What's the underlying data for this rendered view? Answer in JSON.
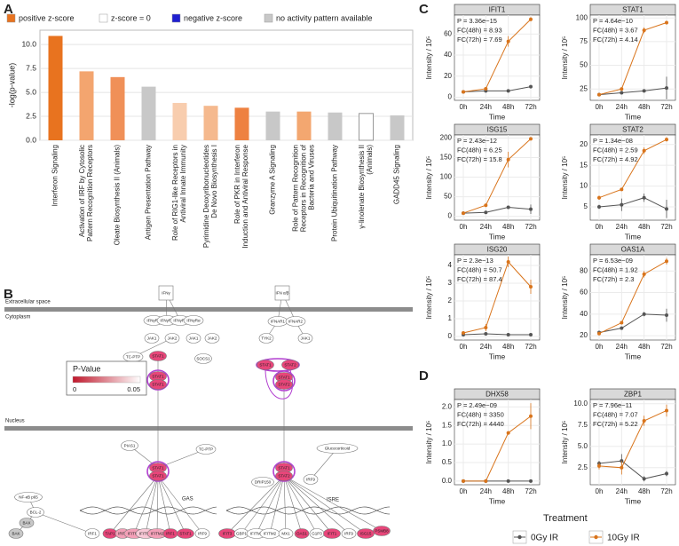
{
  "panels": [
    "A",
    "B",
    "C",
    "D"
  ],
  "chart_data": [
    {
      "type": "bar",
      "y_label": "-log(p-value)",
      "legend": [
        {
          "label": "positive z-score",
          "color": "#e8731f"
        },
        {
          "label": "z-score = 0",
          "color": "#ffffff"
        },
        {
          "label": "negative z-score",
          "color": "#1f1fd0"
        },
        {
          "label": "no activity pattern available",
          "color": "#c8c8c8"
        }
      ],
      "categories": [
        "Interferon Signaling",
        "Activation of IRF by Cytosolic\nPattern Recognition Receptors",
        "Oleate Biosynthesis II (Animals)",
        "Antigen Presentation Pathway",
        "Role of RIG1-like Receptors in\nAntiviral Innate Immunity",
        "Pyrimidine Deoxyribonucleotides\nDe Novo Biosynthesis I",
        "Role of PKR in Interferon\nInduction and Antiviral Response",
        "Granzyme A Signaling",
        "Role of Pattern Recognition\nReceptors in Recognition of\nBacteria and Viruses",
        "Protein Ubiquitination Pathway",
        "γ-linolenate Biosynthesis II\n(Animals)",
        "GADD45 Signaling"
      ],
      "values": [
        10.9,
        7.2,
        6.6,
        5.6,
        3.9,
        3.6,
        3.4,
        3.0,
        3.0,
        2.9,
        2.8,
        2.6
      ],
      "colors": [
        "#e8731f",
        "#f3a56f",
        "#f09058",
        "#c8c8c8",
        "#f8cdae",
        "#f5b98e",
        "#ee8141",
        "#c8c8c8",
        "#f3a770",
        "#c8c8c8",
        "#ffffff",
        "#c8c8c8"
      ],
      "ylim": [
        0,
        11.5
      ],
      "yticks": [
        {
          "value": 0,
          "label": "0.0"
        },
        2.5,
        {
          "value": 5,
          "label": "5.0"
        },
        7.5,
        {
          "value": 10,
          "label": "10.0"
        }
      ],
      "grid": true
    },
    {
      "type": "line",
      "title": "IFIT1",
      "annotations": [
        "P = 3.36e−15",
        "FC(48h) = 8.93",
        "FC(72h) = 7.69"
      ],
      "x_label": "Time",
      "y_label": "Intensity / 10⁵",
      "legend_title": "Treatment",
      "categories": [
        "0h",
        "24h",
        "48h",
        "72h"
      ],
      "ylim": [
        -3,
        78
      ],
      "yticks": [
        0,
        20,
        40,
        60
      ],
      "grid": true,
      "series": [
        {
          "name": "0Gy IR",
          "color": "#555555",
          "values": [
            5,
            6,
            6,
            10
          ],
          "errors": [
            0.5,
            0.5,
            0.5,
            1
          ]
        },
        {
          "name": "10Gy IR",
          "color": "#d9741b",
          "values": [
            5,
            8,
            53,
            74
          ],
          "errors": [
            0.5,
            1,
            5,
            2
          ]
        }
      ]
    },
    {
      "type": "line",
      "title": "STAT1",
      "annotations": [
        "P = 4.64e−10",
        "FC(48h) = 3.67",
        "FC(72h) = 4.14"
      ],
      "x_label": "Time",
      "y_label": "Intensity / 10⁵",
      "categories": [
        "0h",
        "24h",
        "48h",
        "72h"
      ],
      "ylim": [
        13,
        103
      ],
      "yticks": [
        25,
        50,
        75,
        100
      ],
      "grid": true,
      "series": [
        {
          "name": "0Gy IR",
          "color": "#555555",
          "values": [
            19,
            21,
            23,
            26
          ],
          "errors": [
            1,
            1,
            1,
            12
          ]
        },
        {
          "name": "10Gy IR",
          "color": "#d9741b",
          "values": [
            19,
            25,
            87,
            95
          ],
          "errors": [
            1,
            1,
            3,
            2
          ]
        }
      ]
    },
    {
      "type": "line",
      "title": "ISG15",
      "annotations": [
        "P = 2.43e−12",
        "FC(48h) = 6.25",
        "FC(72h) = 15.8"
      ],
      "x_label": "Time",
      "y_label": "Intensity / 10⁵",
      "categories": [
        "0h",
        "24h",
        "48h",
        "72h"
      ],
      "ylim": [
        -10,
        208
      ],
      "yticks": [
        0,
        50,
        100,
        150,
        200
      ],
      "grid": true,
      "series": [
        {
          "name": "0Gy IR",
          "color": "#555555",
          "values": [
            8,
            10,
            23,
            18
          ],
          "errors": [
            1,
            2,
            3,
            12
          ]
        },
        {
          "name": "10Gy IR",
          "color": "#d9741b",
          "values": [
            8,
            28,
            145,
            198
          ],
          "errors": [
            2,
            3,
            20,
            3
          ]
        }
      ]
    },
    {
      "type": "line",
      "title": "STAT2",
      "annotations": [
        "P = 1.34e−08",
        "FC(48h) = 2.59",
        "FC(72h) = 4.92"
      ],
      "x_label": "Time",
      "y_label": "Intensity / 10⁵",
      "categories": [
        "0h",
        "24h",
        "48h",
        "72h"
      ],
      "ylim": [
        1.8,
        22.3
      ],
      "yticks": [
        5,
        10,
        15,
        20
      ],
      "grid": true,
      "series": [
        {
          "name": "0Gy IR",
          "color": "#555555",
          "values": [
            5,
            5.5,
            7.2,
            4.5
          ],
          "errors": [
            0.5,
            1.5,
            1,
            2.2
          ]
        },
        {
          "name": "10Gy IR",
          "color": "#d9741b",
          "values": [
            7.2,
            9.2,
            18.5,
            21.2
          ],
          "errors": [
            0.5,
            0.3,
            0.8,
            0.5
          ]
        }
      ]
    },
    {
      "type": "line",
      "title": "ISG20",
      "annotations": [
        "P = 2.3e−13",
        "FC(48h) = 50.7",
        "FC(72h) = 87.4"
      ],
      "x_label": "Time",
      "y_label": "Intensity / 10⁵",
      "categories": [
        "0h",
        "24h",
        "48h",
        "72h"
      ],
      "ylim": [
        -0.2,
        4.6
      ],
      "yticks": [
        0,
        1,
        2,
        3,
        4
      ],
      "grid": true,
      "series": [
        {
          "name": "0Gy IR",
          "color": "#555555",
          "values": [
            0.1,
            0.15,
            0.1,
            0.1
          ],
          "errors": [
            0.03,
            0.03,
            0.03,
            0.03
          ]
        },
        {
          "name": "10Gy IR",
          "color": "#d9741b",
          "values": [
            0.2,
            0.5,
            4.2,
            2.8
          ],
          "errors": [
            0.05,
            0.2,
            0.3,
            0.4
          ]
        }
      ]
    },
    {
      "type": "line",
      "title": "OAS1A",
      "annotations": [
        "P = 6.53e−09",
        "FC(48h) = 1.92",
        "FC(72h) = 2.3"
      ],
      "x_label": "Time",
      "y_label": "Intensity / 10⁵",
      "categories": [
        "0h",
        "24h",
        "48h",
        "72h"
      ],
      "ylim": [
        16,
        95
      ],
      "yticks": [
        20,
        40,
        60,
        80
      ],
      "grid": true,
      "series": [
        {
          "name": "0Gy IR",
          "color": "#555555",
          "values": [
            23,
            27,
            40,
            39
          ],
          "errors": [
            1,
            1,
            2,
            6
          ]
        },
        {
          "name": "10Gy IR",
          "color": "#d9741b",
          "values": [
            22,
            32,
            77,
            89
          ],
          "errors": [
            1,
            1,
            3,
            3
          ]
        }
      ]
    },
    {
      "type": "line",
      "title": "DHX58",
      "annotations": [
        "P = 2.49e−09",
        "FC(48h) = 3350",
        "FC(72h) = 4440"
      ],
      "x_label": "Time",
      "y_label": "Intensity / 10⁵",
      "categories": [
        "0h",
        "24h",
        "48h",
        "72h"
      ],
      "ylim": [
        -0.1,
        2.2
      ],
      "yticks": [
        {
          "value": 0,
          "label": "0.0"
        },
        0.5,
        {
          "value": 1,
          "label": "1.0"
        },
        1.5,
        {
          "value": 2,
          "label": "2.0"
        }
      ],
      "grid": true,
      "series": [
        {
          "name": "0Gy IR",
          "color": "#555555",
          "values": [
            0,
            0,
            0,
            0
          ],
          "errors": [
            0,
            0,
            0,
            0
          ]
        },
        {
          "name": "10Gy IR",
          "color": "#d9741b",
          "values": [
            0,
            0,
            1.3,
            1.75
          ],
          "errors": [
            0.02,
            0.02,
            0.05,
            0.35
          ]
        }
      ]
    },
    {
      "type": "line",
      "title": "ZBP1",
      "annotations": [
        "P = 7.96e−11",
        "FC(48h) = 7.07",
        "FC(72h) = 5.22"
      ],
      "x_label": "Time",
      "y_label": "Intensity / 10⁵",
      "categories": [
        "0h",
        "24h",
        "48h",
        "72h"
      ],
      "ylim": [
        0.5,
        10.5
      ],
      "yticks": [
        2.5,
        {
          "value": 5,
          "label": "5.0"
        },
        7.5,
        {
          "value": 10,
          "label": "10.0"
        }
      ],
      "grid": true,
      "series": [
        {
          "name": "0Gy IR",
          "color": "#555555",
          "values": [
            3,
            3.3,
            1.2,
            1.8
          ],
          "errors": [
            0.3,
            0.8,
            0.3,
            0.3
          ]
        },
        {
          "name": "10Gy IR",
          "color": "#d9741b",
          "values": [
            2.7,
            2.5,
            8,
            9.2
          ],
          "errors": [
            0.4,
            0.8,
            0.6,
            0.7
          ]
        }
      ]
    }
  ],
  "diagram": {
    "compartments": [
      "Extracellular space",
      "Cytoplasm",
      "Nucleus"
    ],
    "sites": [
      "GAS",
      "ISRE"
    ],
    "pvalue_legend": {
      "title": "P-Value",
      "ticks": [
        0,
        0.05
      ],
      "colors": [
        "#c0172b",
        "#ffffff"
      ]
    },
    "nodes": [
      {
        "label": "IFNγ",
        "color": "#ffffff"
      },
      {
        "label": "IFNγRα",
        "color": "#ffffff"
      },
      {
        "label": "IFNγRβ",
        "color": "#ffffff"
      },
      {
        "label": "IFNγRβ",
        "color": "#ffffff"
      },
      {
        "label": "IFNγRα",
        "color": "#ffffff"
      },
      {
        "label": "JAK1",
        "color": "#ffffff"
      },
      {
        "label": "JAK2",
        "color": "#ffffff"
      },
      {
        "label": "JAK1",
        "color": "#ffffff"
      },
      {
        "label": "JAK2",
        "color": "#ffffff"
      },
      {
        "label": "TC-PTP",
        "color": "#ffffff"
      },
      {
        "label": "STAT1",
        "color": "#e8467a"
      },
      {
        "label": "SOCS1",
        "color": "#ffffff"
      },
      {
        "label": "STAT1",
        "color": "#e8467a"
      },
      {
        "label": "STAT1",
        "color": "#e8467a"
      },
      {
        "label": "PIAS1",
        "color": "#ffffff"
      },
      {
        "label": "TC-PTP",
        "color": "#ffffff"
      },
      {
        "label": "STAT1",
        "color": "#e8467a"
      },
      {
        "label": "STAT1",
        "color": "#e8467a"
      },
      {
        "label": "NF-κB p65",
        "color": "#ffffff"
      },
      {
        "label": "BCL-2",
        "color": "#ffffff"
      },
      {
        "label": "BAX",
        "color": "#c8c8c8"
      },
      {
        "label": "BAK",
        "color": "#c8c8c8"
      },
      {
        "label": "IRF1",
        "color": "#ffffff"
      },
      {
        "label": "TAP1",
        "color": "#e8467a"
      },
      {
        "label": "IRF8",
        "color": "#f4a0b8"
      },
      {
        "label": "IFITM3",
        "color": "#f4a0b8"
      },
      {
        "label": "IFITM1",
        "color": "#f8c8d6"
      },
      {
        "label": "IFITM2",
        "color": "#f4a0b8"
      },
      {
        "label": "IRF1",
        "color": "#e8467a"
      },
      {
        "label": "STAT1",
        "color": "#e8467a"
      },
      {
        "label": "IRF9",
        "color": "#ffffff"
      },
      {
        "label": "IFN α/β",
        "color": "#ffffff"
      },
      {
        "label": "IFNAR1",
        "color": "#ffffff"
      },
      {
        "label": "IFNAR2",
        "color": "#ffffff"
      },
      {
        "label": "TYK2",
        "color": "#ffffff"
      },
      {
        "label": "JAK1",
        "color": "#ffffff"
      },
      {
        "label": "STAT1",
        "color": "#e8467a"
      },
      {
        "label": "STAT2",
        "color": "#e8467a"
      },
      {
        "label": "STAT1",
        "color": "#e8467a"
      },
      {
        "label": "STAT2",
        "color": "#e8467a"
      },
      {
        "label": "STAT1",
        "color": "#e8467a"
      },
      {
        "label": "STAT2",
        "color": "#e8467a"
      },
      {
        "label": "DRIP150",
        "color": "#ffffff"
      },
      {
        "label": "IRF9",
        "color": "#ffffff"
      },
      {
        "label": "Glucocorticoid",
        "color": "#ffffff"
      },
      {
        "label": "IFIT3",
        "color": "#e8467a"
      },
      {
        "label": "GBP1",
        "color": "#ffffff"
      },
      {
        "label": "IFITM1",
        "color": "#ffffff"
      },
      {
        "label": "IFITM2",
        "color": "#ffffff"
      },
      {
        "label": "MX1",
        "color": "#ffffff"
      },
      {
        "label": "OAS1",
        "color": "#e8467a"
      },
      {
        "label": "G1P3",
        "color": "#ffffff"
      },
      {
        "label": "IFIT1",
        "color": "#e8467a"
      },
      {
        "label": "IRF9",
        "color": "#ffffff"
      },
      {
        "label": "ISG15",
        "color": "#e8467a"
      },
      {
        "label": "PSMB8",
        "color": "#e8467a"
      }
    ]
  }
}
